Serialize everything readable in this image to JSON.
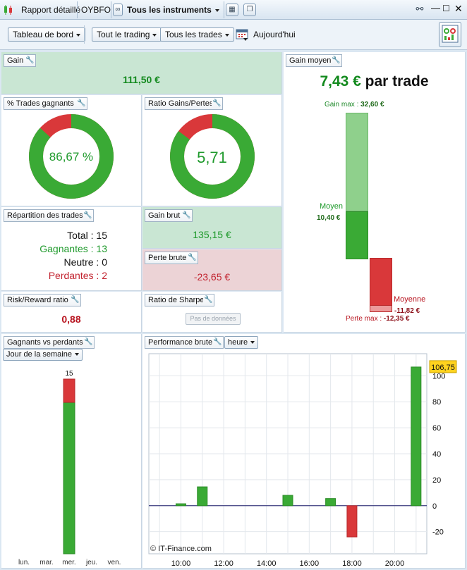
{
  "titlebar": {
    "report_label": "Rapport détaillé",
    "account_label": "OYBFO",
    "instruments_label": "Tous les instruments"
  },
  "toolbar": {
    "dashboard_label": "Tableau de bord",
    "trading_label": "Tout le trading",
    "trades_label": "Tous les trades",
    "date_label": "Aujourd'hui"
  },
  "gain": {
    "title": "Gain",
    "value": "111,50 €"
  },
  "win_pct": {
    "title": "% Trades gagnants",
    "value": "86,67 %",
    "fraction": 0.8667
  },
  "ratio_gp": {
    "title": "Ratio Gains/Pertes",
    "value": "5,71",
    "fraction": 0.851
  },
  "gain_moyen": {
    "title": "Gain moyen",
    "value": "7,43 €",
    "unit": "par trade",
    "gain_max_label": "Gain max :",
    "gain_max_value": "32,60 €",
    "moyen_label": "Moyen",
    "moyen_value": "10,40 €",
    "moyenne_label": "Moyenne",
    "moyenne_value": "-11,82 €",
    "perte_max_label": "Perte max :",
    "perte_max_value": "-12,35 €"
  },
  "repartition": {
    "title": "Répartition des trades",
    "total_label": "Total :",
    "total_value": "15",
    "gagnantes_label": "Gagnantes :",
    "gagnantes_value": "13",
    "neutre_label": "Neutre :",
    "neutre_value": "0",
    "perdantes_label": "Perdantes :",
    "perdantes_value": "2"
  },
  "gain_brut": {
    "title": "Gain brut",
    "value": "135,15 €"
  },
  "perte_brute": {
    "title": "Perte brute",
    "value": "-23,65 €"
  },
  "risk_reward": {
    "title": "Risk/Reward ratio",
    "value": "0,88"
  },
  "sharpe": {
    "title": "Ratio de Sharpe",
    "button_label": "Pas de données"
  },
  "winners_losers": {
    "title": "Gagnants vs perdants",
    "period_label": "Jour de la semaine"
  },
  "performance": {
    "title": "Performance brute",
    "period_label": "heure",
    "watermark": "© IT-Finance.com",
    "last_value_label": "106,75"
  },
  "colors": {
    "win": "#3aaa35",
    "loss": "#d9383a",
    "win_light": "#8fd08c"
  },
  "chart_data": [
    {
      "type": "bar",
      "categories": [
        "lun.",
        "mar.",
        "mer.",
        "jeu.",
        "ven."
      ],
      "series": [
        {
          "name": "Gagnantes",
          "values": [
            0,
            0,
            13,
            0,
            0
          ]
        },
        {
          "name": "Perdantes",
          "values": [
            0,
            0,
            2,
            0,
            0
          ]
        }
      ],
      "totals": [
        0,
        0,
        15,
        0,
        0
      ],
      "ylim": [
        0,
        15
      ]
    },
    {
      "type": "bar",
      "x": [
        9,
        10,
        11,
        12,
        13,
        14,
        15,
        16,
        17,
        18,
        19,
        20,
        21,
        22
      ],
      "xticks": [
        "10:00",
        "12:00",
        "14:00",
        "16:00",
        "18:00",
        "20:00"
      ],
      "xtick_values": [
        10,
        12,
        14,
        16,
        18,
        20
      ],
      "bars": [
        {
          "x": 10,
          "value": 1.5
        },
        {
          "x": 11,
          "value": 14.5
        },
        {
          "x": 15,
          "value": 8
        },
        {
          "x": 17,
          "value": 5.5
        },
        {
          "x": 18,
          "value": -24
        },
        {
          "x": 21,
          "value": 106.75
        }
      ],
      "yticks": [
        "100",
        "80",
        "60",
        "40",
        "20",
        "0",
        "-20"
      ],
      "ytick_values": [
        100,
        80,
        60,
        40,
        20,
        0,
        -20
      ],
      "ylim": [
        -37,
        117
      ],
      "grid": true
    }
  ]
}
